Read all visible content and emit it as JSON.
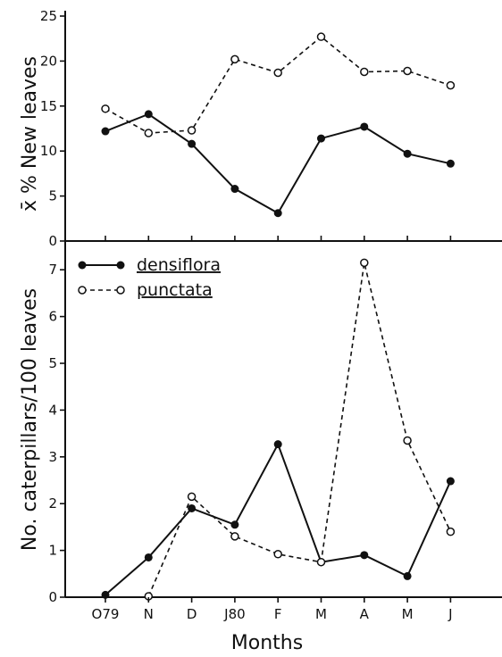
{
  "chart_data": [
    {
      "type": "line",
      "ylabel": "x̄ % New leaves",
      "ylim": [
        0,
        25
      ],
      "yticks": [
        "0",
        "5",
        "10",
        "15",
        "20",
        "25"
      ],
      "series": [
        {
          "name": "densiflora",
          "marker": "filled",
          "style": "solid",
          "points": [
            [
              0,
              12.2
            ],
            [
              1,
              14.1
            ],
            [
              2,
              10.8
            ],
            [
              3,
              5.8
            ],
            [
              4,
              3.1
            ],
            [
              5,
              11.4
            ],
            [
              6,
              12.7
            ],
            [
              7,
              9.7
            ],
            [
              8,
              8.6
            ]
          ]
        },
        {
          "name": "punctata",
          "marker": "open",
          "style": "dashed",
          "points": [
            [
              0,
              14.7
            ],
            [
              1,
              12.0
            ],
            [
              2,
              12.3
            ],
            [
              3,
              20.2
            ],
            [
              4,
              18.7
            ],
            [
              5,
              22.7
            ],
            [
              6,
              18.8
            ],
            [
              7,
              18.9
            ],
            [
              8,
              17.3
            ]
          ]
        }
      ]
    },
    {
      "type": "line",
      "ylabel": "No. caterpillars/100 leaves",
      "ylim": [
        0,
        7.5
      ],
      "yticks": [
        "0",
        "1",
        "2",
        "3",
        "4",
        "5",
        "6",
        "7"
      ],
      "xlabel": "Months",
      "categories": [
        "O79",
        "N",
        "D",
        "J80",
        "F",
        "M",
        "A",
        "M",
        "J"
      ],
      "legend_position": "top-left",
      "series": [
        {
          "name": "densiflora",
          "marker": "filled",
          "style": "solid",
          "points": [
            [
              0,
              0.05
            ],
            [
              1,
              0.85
            ],
            [
              2,
              1.9
            ],
            [
              3,
              1.55
            ],
            [
              4,
              3.27
            ],
            [
              5,
              0.75
            ],
            [
              6,
              0.9
            ],
            [
              7,
              0.45
            ],
            [
              8,
              2.48
            ]
          ]
        },
        {
          "name": "punctata",
          "marker": "open",
          "style": "dashed",
          "points": [
            [
              1,
              0.02
            ],
            [
              2,
              2.15
            ],
            [
              3,
              1.3
            ],
            [
              4,
              0.92
            ],
            [
              5,
              0.75
            ],
            [
              6,
              7.15
            ],
            [
              7,
              3.35
            ],
            [
              8,
              1.4
            ]
          ]
        }
      ]
    }
  ]
}
